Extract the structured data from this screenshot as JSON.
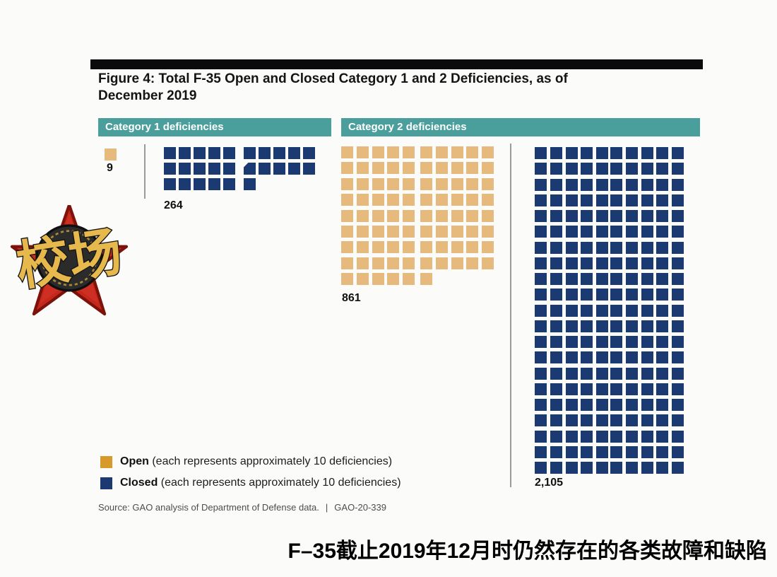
{
  "figure": {
    "title_line1": "Figure 4: Total F-35 Open and Closed Category 1 and 2 Deficiencies, as of",
    "title_line2": "December 2019",
    "source_text": "Source: GAO analysis of Department of Defense data.",
    "separator": "|",
    "report_number": "GAO-20-339"
  },
  "categories": [
    {
      "label": "Category 1 deficiencies",
      "open_label": "9",
      "closed_label": "264"
    },
    {
      "label": "Category 2 deficiencies",
      "open_label": "861",
      "closed_label": "2,105"
    }
  ],
  "legend": {
    "open_name": "Open",
    "open_desc": "(each represents approximately 10 deficiencies)",
    "closed_name": "Closed",
    "closed_desc": "(each represents approximately 10 deficiencies)"
  },
  "caption": "F–35截止2019年12月时仍然存在的各类故障和缺陷",
  "watermark": {
    "text": "校场"
  },
  "colors": {
    "open_square": "#E6BA7C",
    "closed_square": "#1B3A72",
    "legend_open_swatch": "#D8992B",
    "header_teal": "#4A9E9C",
    "top_rule": "#0B0B0B",
    "star_red": "#C4271B",
    "logo_gold": "#E7B84C"
  },
  "chart_data": {
    "type": "pictogram",
    "title": "Figure 4: Total F-35 Open and Closed Category 1 and 2 Deficiencies, as of December 2019",
    "unit_per_symbol": 10,
    "categories": [
      "Category 1 deficiencies",
      "Category 2 deficiencies"
    ],
    "series": [
      {
        "name": "Open",
        "values": [
          9,
          861
        ]
      },
      {
        "name": "Closed",
        "values": [
          264,
          2105
        ]
      }
    ],
    "squares": {
      "cat1_open": 1,
      "cat1_closed": 26,
      "cat2_open": 86,
      "cat2_closed": 210
    },
    "legend_note": "each represents approximately 10 deficiencies",
    "legend_position": "bottom-left",
    "source": "GAO analysis of Department of Defense data.",
    "report_id": "GAO-20-339"
  }
}
